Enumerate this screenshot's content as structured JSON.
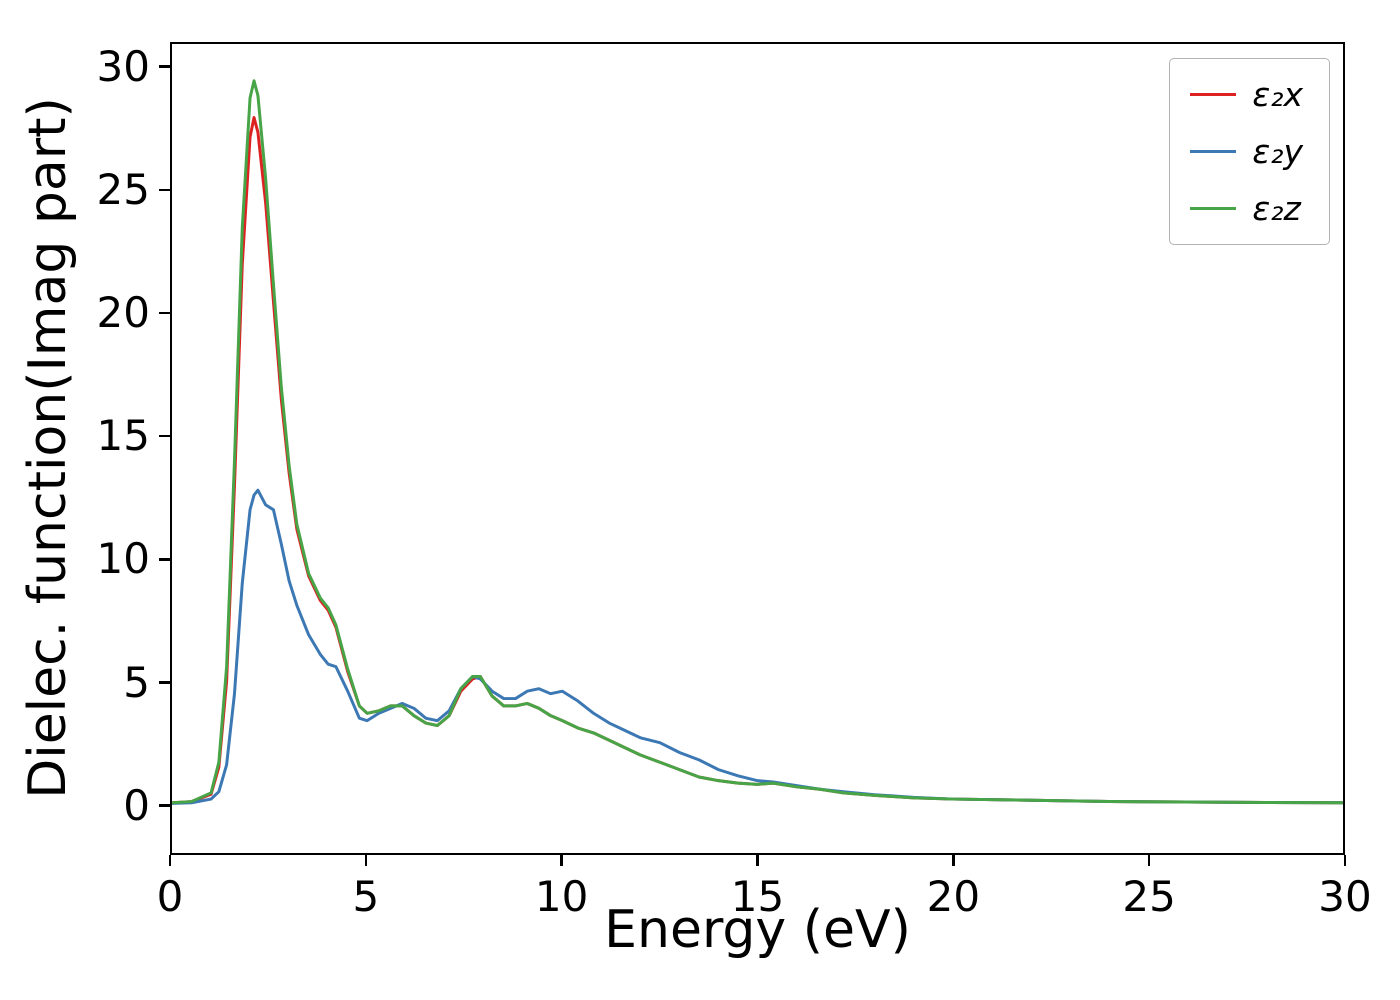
{
  "figure": {
    "background": "#ffffff"
  },
  "chart_data": {
    "type": "line",
    "title": "",
    "xlabel": "Energy (eV)",
    "ylabel": "Dielec. function(Imag part)",
    "xlim": [
      0,
      30
    ],
    "ylim": [
      -2,
      31
    ],
    "xticks": [
      0,
      5,
      10,
      15,
      20,
      25,
      30
    ],
    "yticks": [
      0,
      5,
      10,
      15,
      20,
      25,
      30
    ],
    "grid": false,
    "legend_position": "upper right",
    "x": [
      0,
      0.5,
      1.0,
      1.2,
      1.4,
      1.6,
      1.8,
      2.0,
      2.1,
      2.2,
      2.4,
      2.6,
      2.8,
      3.0,
      3.2,
      3.5,
      3.8,
      4.0,
      4.2,
      4.5,
      4.8,
      5.0,
      5.3,
      5.6,
      5.9,
      6.2,
      6.5,
      6.8,
      7.1,
      7.4,
      7.7,
      7.9,
      8.2,
      8.5,
      8.8,
      9.1,
      9.4,
      9.7,
      10.0,
      10.4,
      10.8,
      11.2,
      11.6,
      12.0,
      12.5,
      13.0,
      13.5,
      14.0,
      14.5,
      15.0,
      15.4,
      16.0,
      16.6,
      17.2,
      18.0,
      19.0,
      20.0,
      22.0,
      24.0,
      26.0,
      28.0,
      30.0
    ],
    "series": [
      {
        "id": "e2x",
        "label": "ε₂x",
        "color": "#dd2222",
        "values": [
          0.05,
          0.1,
          0.4,
          1.5,
          5.0,
          13.0,
          22.0,
          27.2,
          28.0,
          27.4,
          24.5,
          20.5,
          16.5,
          13.5,
          11.2,
          9.3,
          8.3,
          7.9,
          7.2,
          5.4,
          4.0,
          3.7,
          3.8,
          4.0,
          4.0,
          3.6,
          3.3,
          3.2,
          3.6,
          4.6,
          5.1,
          5.2,
          4.4,
          4.0,
          4.0,
          4.1,
          3.9,
          3.6,
          3.4,
          3.1,
          2.9,
          2.6,
          2.3,
          2.0,
          1.7,
          1.4,
          1.1,
          0.95,
          0.85,
          0.8,
          0.85,
          0.7,
          0.6,
          0.45,
          0.35,
          0.25,
          0.2,
          0.15,
          0.1,
          0.08,
          0.06,
          0.05
        ]
      },
      {
        "id": "e2y",
        "label": "ε₂y",
        "color": "#3c78b4",
        "values": [
          0.02,
          0.05,
          0.2,
          0.5,
          1.6,
          4.5,
          9.0,
          12.0,
          12.6,
          12.8,
          12.2,
          12.0,
          10.6,
          9.1,
          8.1,
          6.9,
          6.1,
          5.7,
          5.6,
          4.6,
          3.5,
          3.4,
          3.7,
          3.9,
          4.1,
          3.9,
          3.5,
          3.4,
          3.8,
          4.7,
          5.2,
          5.1,
          4.6,
          4.3,
          4.3,
          4.6,
          4.7,
          4.5,
          4.6,
          4.2,
          3.7,
          3.3,
          3.0,
          2.7,
          2.5,
          2.1,
          1.8,
          1.4,
          1.15,
          0.95,
          0.9,
          0.75,
          0.6,
          0.5,
          0.38,
          0.27,
          0.2,
          0.15,
          0.1,
          0.08,
          0.06,
          0.05
        ]
      },
      {
        "id": "e2z",
        "label": "ε₂z",
        "color": "#47a447",
        "values": [
          0.05,
          0.1,
          0.45,
          1.7,
          5.6,
          14.0,
          23.5,
          28.8,
          29.5,
          28.9,
          25.5,
          21.2,
          17.0,
          13.8,
          11.4,
          9.4,
          8.4,
          8.0,
          7.3,
          5.5,
          4.0,
          3.7,
          3.8,
          4.0,
          4.0,
          3.6,
          3.3,
          3.2,
          3.6,
          4.7,
          5.2,
          5.2,
          4.4,
          4.0,
          4.0,
          4.1,
          3.9,
          3.6,
          3.4,
          3.1,
          2.9,
          2.6,
          2.3,
          2.0,
          1.7,
          1.4,
          1.1,
          0.95,
          0.85,
          0.8,
          0.85,
          0.7,
          0.6,
          0.45,
          0.35,
          0.25,
          0.2,
          0.15,
          0.1,
          0.08,
          0.06,
          0.05
        ]
      }
    ]
  }
}
